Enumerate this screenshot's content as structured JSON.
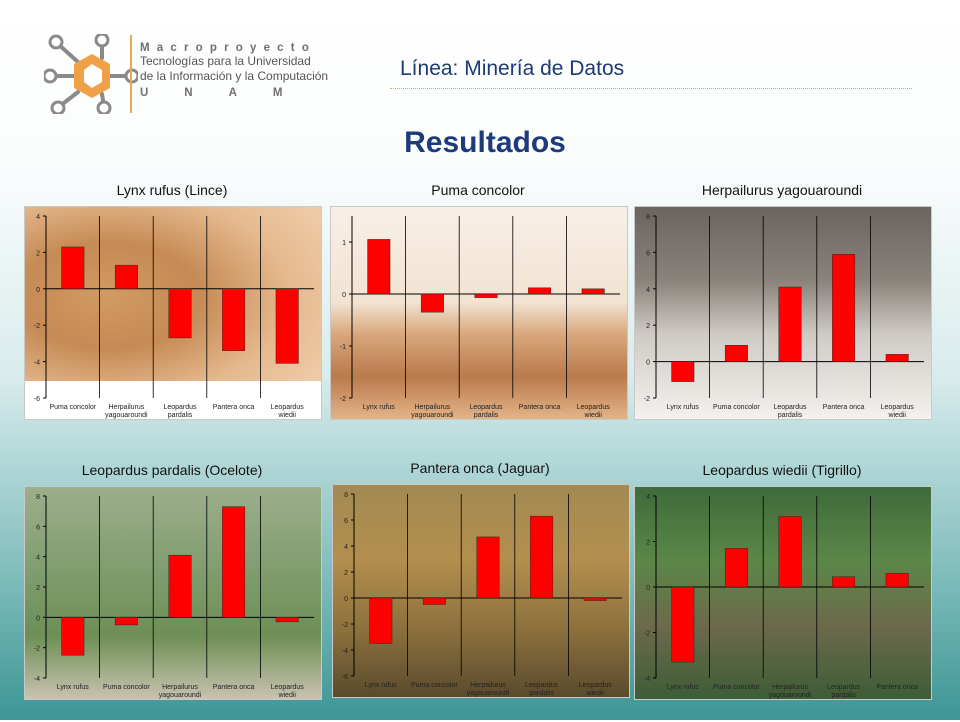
{
  "logo": {
    "brand": "Macroproyecto",
    "line1": "Tecnologías para la Universidad",
    "line2": "de la Información y la Computación",
    "unam": "UNAM"
  },
  "header": {
    "linea": "Línea: Minería de Datos"
  },
  "page_title": "Resultados",
  "colors": {
    "bar": "#ff0000",
    "title": "#1d3b7a",
    "axis": "#000000"
  },
  "chart_data": [
    {
      "type": "bar",
      "title": "Lynx rufus (Lince)",
      "categories": [
        "Puma concolor",
        "Herpailurus yagouaroundi",
        "Leopardus pardalis",
        "Pantera onca",
        "Leopardus wiedii"
      ],
      "values": [
        2.3,
        1.3,
        -2.7,
        -3.4,
        -4.1
      ],
      "ylim": [
        -6,
        4
      ],
      "yticks": [
        4,
        2,
        0,
        -2,
        -4,
        -6
      ],
      "xlabel": "",
      "ylabel": ""
    },
    {
      "type": "bar",
      "title": "Puma concolor",
      "categories": [
        "Lynx rufus",
        "Herpailurus yagouaroundi",
        "Leopardus pardalis",
        "Pantera onca",
        "Leopardus wiedii"
      ],
      "values": [
        1.05,
        -0.35,
        -0.07,
        0.12,
        0.1
      ],
      "ylim": [
        -2,
        1.5
      ],
      "yticks": [
        1,
        0,
        -1,
        -2
      ],
      "xlabel": "",
      "ylabel": ""
    },
    {
      "type": "bar",
      "title": "Herpailurus yagouaroundi",
      "categories": [
        "Lynx rufus",
        "Puma concolor",
        "Leopardus pardalis",
        "Pantera onca",
        "Leopardus wiedii"
      ],
      "values": [
        -1.1,
        0.9,
        4.1,
        5.9,
        0.4
      ],
      "ylim": [
        -2,
        8
      ],
      "yticks": [
        8,
        6,
        4,
        2,
        0,
        -2
      ],
      "xlabel": "",
      "ylabel": ""
    },
    {
      "type": "bar",
      "title": "Leopardus pardalis (Ocelote)",
      "categories": [
        "Lynx rufus",
        "Puma concolor",
        "Herpailurus yagouaroundi",
        "Pantera onca",
        "Leopardus wiedii"
      ],
      "values": [
        -2.5,
        -0.5,
        4.1,
        7.3,
        -0.3
      ],
      "ylim": [
        -4,
        8
      ],
      "yticks": [
        8,
        6,
        4,
        2,
        0,
        -2,
        -4
      ],
      "xlabel": "",
      "ylabel": ""
    },
    {
      "type": "bar",
      "title": "Pantera onca (Jaguar)",
      "categories": [
        "Lynx rufus",
        "Puma concolor",
        "Herpailurus yagouaroundi",
        "Leopardus pardalis",
        "Leopardus wiedii"
      ],
      "values": [
        -3.5,
        -0.5,
        4.7,
        6.3,
        -0.2
      ],
      "ylim": [
        -6,
        8
      ],
      "yticks": [
        8,
        6,
        4,
        2,
        0,
        -2,
        -4,
        -6
      ],
      "xlabel": "",
      "ylabel": ""
    },
    {
      "type": "bar",
      "title": "Leopardus wiedii (Tigrillo)",
      "categories": [
        "Lynx rufus",
        "Puma concolor",
        "Herpailurus yagouaroundi",
        "Leopardus pardalis",
        "Pantera onca"
      ],
      "values": [
        -3.3,
        1.7,
        3.1,
        0.45,
        0.6
      ],
      "ylim": [
        -4,
        4
      ],
      "yticks": [
        4,
        2,
        0,
        -2,
        -4
      ],
      "xlabel": "",
      "ylabel": ""
    }
  ]
}
